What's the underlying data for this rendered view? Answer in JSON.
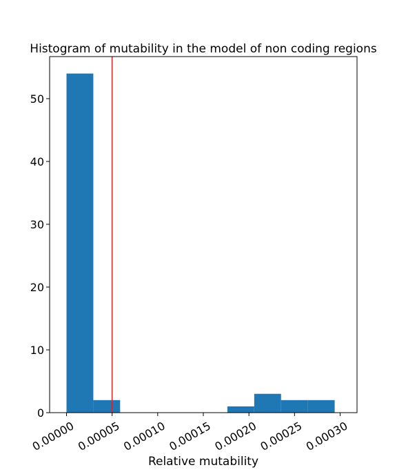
{
  "chart_data": {
    "type": "bar",
    "title": "Histogram of mutability in the model of non coding regions",
    "xlabel": "Relative mutability",
    "ylabel": "",
    "xlim": [
      -1.85e-05,
      0.0003185
    ],
    "ylim": [
      0,
      56.7
    ],
    "grid": false,
    "x_ticks": [
      {
        "value": 0.0,
        "label": "0.00000"
      },
      {
        "value": 5e-05,
        "label": "0.00005"
      },
      {
        "value": 0.0001,
        "label": "0.00010"
      },
      {
        "value": 0.00015,
        "label": "0.00015"
      },
      {
        "value": 0.0002,
        "label": "0.00020"
      },
      {
        "value": 0.00025,
        "label": "0.00025"
      },
      {
        "value": 0.0003,
        "label": "0.00030"
      }
    ],
    "y_ticks": [
      {
        "value": 0,
        "label": "0"
      },
      {
        "value": 10,
        "label": "10"
      },
      {
        "value": 20,
        "label": "20"
      },
      {
        "value": 30,
        "label": "30"
      },
      {
        "value": 40,
        "label": "40"
      },
      {
        "value": 50,
        "label": "50"
      }
    ],
    "bins": [
      {
        "start": 0.0,
        "end": 2.94e-05,
        "count": 54
      },
      {
        "start": 2.94e-05,
        "end": 5.88e-05,
        "count": 2
      },
      {
        "start": 5.88e-05,
        "end": 8.82e-05,
        "count": 0
      },
      {
        "start": 8.82e-05,
        "end": 0.0001176,
        "count": 0
      },
      {
        "start": 0.0001176,
        "end": 0.000147,
        "count": 0
      },
      {
        "start": 0.000147,
        "end": 0.0001764,
        "count": 0
      },
      {
        "start": 0.0001764,
        "end": 0.0002058,
        "count": 1
      },
      {
        "start": 0.0002058,
        "end": 0.0002352,
        "count": 3
      },
      {
        "start": 0.0002352,
        "end": 0.0002646,
        "count": 2
      },
      {
        "start": 0.0002646,
        "end": 0.000294,
        "count": 2
      }
    ],
    "reference_line": {
      "x": 5e-05,
      "color": "#d62728"
    },
    "bar_color": "#1f77b4"
  }
}
